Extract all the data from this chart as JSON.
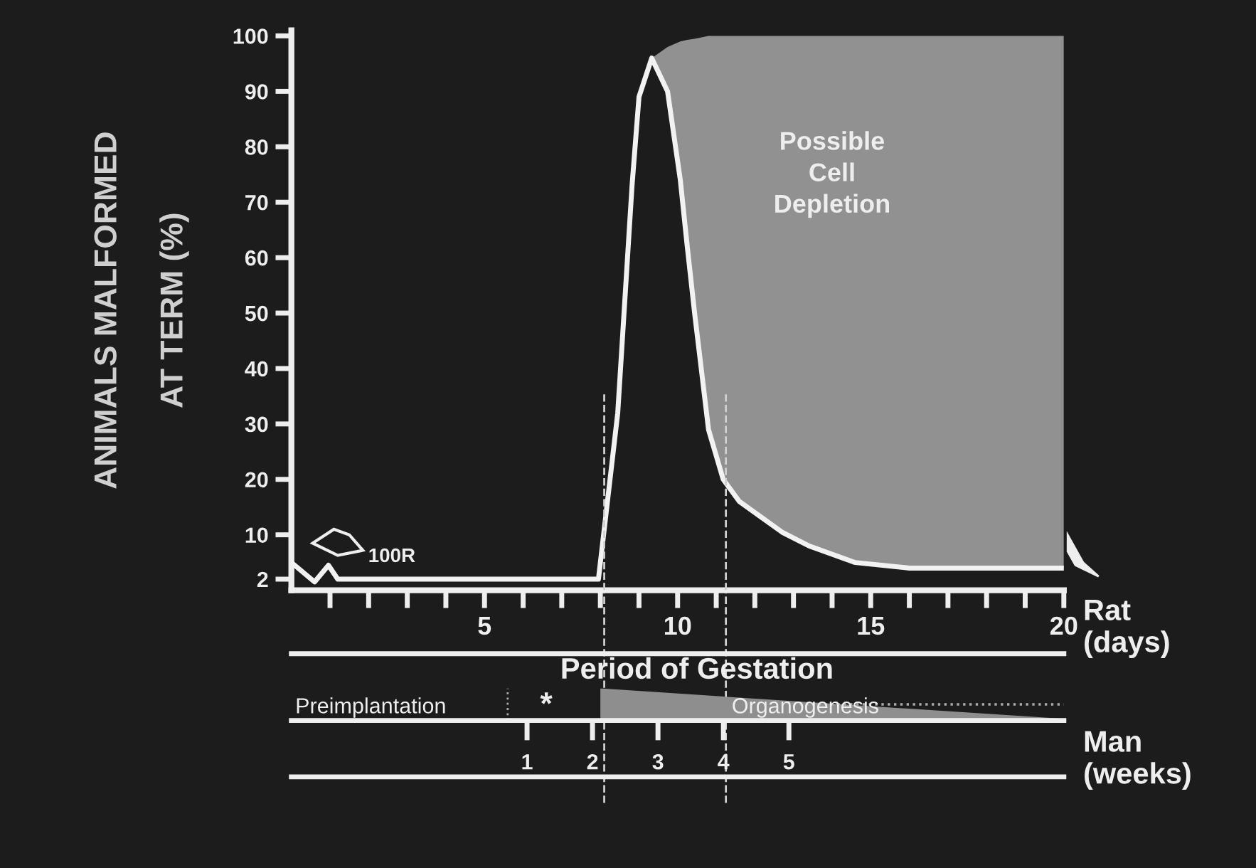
{
  "chart_data": {
    "type": "line",
    "ylabel": "ANIMALS MALFORMED\nAT TERM (%)",
    "xlabel": "Rat\n(days)",
    "x2label": "Man\n(weeks)",
    "xlim": [
      0,
      20
    ],
    "ylim": [
      0,
      101
    ],
    "yticks": [
      2,
      10,
      20,
      30,
      40,
      50,
      60,
      70,
      80,
      90,
      100
    ],
    "xticks": [
      {
        "value": 1,
        "label": null
      },
      {
        "value": 2,
        "label": null
      },
      {
        "value": 3,
        "label": null
      },
      {
        "value": 4,
        "label": null
      },
      5,
      {
        "value": 6,
        "label": null
      },
      {
        "value": 7,
        "label": null
      },
      {
        "value": 8,
        "label": null
      },
      {
        "value": 9,
        "label": null
      },
      10,
      {
        "value": 11,
        "label": null
      },
      {
        "value": 12,
        "label": null
      },
      {
        "value": 13,
        "label": null
      },
      {
        "value": 14,
        "label": null
      },
      15,
      {
        "value": 16,
        "label": null
      },
      {
        "value": 17,
        "label": null
      },
      {
        "value": 18,
        "label": null
      },
      {
        "value": 19,
        "label": null
      },
      20
    ],
    "x2lim": [
      -2.6,
      9.2
    ],
    "x2ticks": [
      1,
      2,
      3,
      4,
      5
    ],
    "series": [
      {
        "color": "#f2f2f2",
        "x": [
          0,
          0.6,
          0.96,
          1.2,
          7.95,
          8.45,
          8.82,
          9.0,
          9.33,
          9.74,
          10.07,
          10.25,
          10.44,
          10.8,
          11.18,
          11.6,
          12.1,
          12.7,
          13.4,
          14.6,
          16,
          20
        ],
        "values": [
          5,
          1.5,
          4.5,
          2,
          2,
          32,
          73,
          89,
          96,
          90,
          74,
          62,
          50,
          29,
          20,
          16,
          13.5,
          10.5,
          8,
          5,
          4,
          4
        ],
        "lower": [
          null,
          null,
          null,
          null,
          null,
          null,
          null,
          null,
          96,
          90,
          74,
          62,
          50,
          29,
          20,
          16,
          13.5,
          10.5,
          8,
          5,
          4,
          4
        ],
        "upper": [
          null,
          null,
          null,
          null,
          null,
          null,
          null,
          null,
          96,
          98,
          99,
          99.3,
          99.5,
          100,
          100,
          100,
          100,
          100,
          100,
          100,
          100,
          100
        ]
      }
    ],
    "ref_lines": [
      {
        "axis": "x",
        "value": 8.1,
        "line_style": "dashed",
        "color": "#d0d0d0"
      },
      {
        "axis": "x",
        "value": 11.25,
        "line_style": "dashed",
        "color": "#d0d0d0"
      }
    ],
    "annotations": [
      "Possible\nCell\nDepletion",
      "100R",
      "Period of Gestation",
      "*",
      "Preimplantation",
      "Organogenesis"
    ],
    "grid": false,
    "legend": false,
    "marker": "none",
    "line_style": "solid"
  }
}
